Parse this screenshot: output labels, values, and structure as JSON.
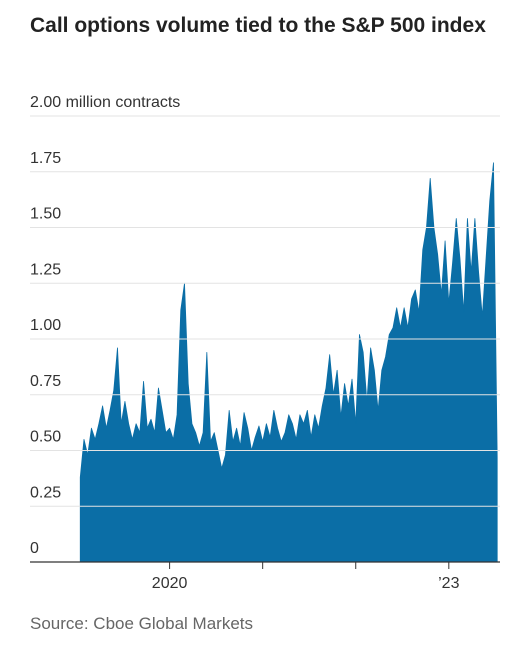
{
  "chart_data": {
    "type": "area",
    "title": "Call options volume tied to the S&P 500 index",
    "source": "Source: Cboe Global Markets",
    "color": "#0b6ea6",
    "grid": true,
    "xlim": [
      2018.5,
      2023.55
    ],
    "xticks": [
      2020,
      {
        "value": 2021,
        "label": null
      },
      {
        "value": 2022,
        "label": null
      },
      {
        "value": 2023,
        "label": "’23"
      }
    ],
    "ylim": [
      0,
      2
    ],
    "yticks": [
      0,
      0.25,
      {
        "value": 0.5,
        "label": "0.50"
      },
      0.75,
      {
        "value": 1,
        "label": "1.00"
      },
      1.25,
      {
        "value": 1.5,
        "label": "1.50"
      },
      1.75,
      {
        "value": 2,
        "label": "2.00 million contracts"
      }
    ],
    "x": [
      2019.04,
      2019.08,
      2019.12,
      2019.16,
      2019.2,
      2019.24,
      2019.28,
      2019.32,
      2019.36,
      2019.4,
      2019.44,
      2019.48,
      2019.52,
      2019.56,
      2019.6,
      2019.64,
      2019.68,
      2019.72,
      2019.76,
      2019.8,
      2019.84,
      2019.88,
      2019.92,
      2019.96,
      2020.0,
      2020.04,
      2020.08,
      2020.12,
      2020.16,
      2020.2,
      2020.24,
      2020.28,
      2020.32,
      2020.36,
      2020.4,
      2020.44,
      2020.48,
      2020.52,
      2020.56,
      2020.6,
      2020.64,
      2020.68,
      2020.72,
      2020.76,
      2020.8,
      2020.84,
      2020.88,
      2020.92,
      2020.96,
      2021.0,
      2021.04,
      2021.08,
      2021.12,
      2021.16,
      2021.2,
      2021.24,
      2021.28,
      2021.32,
      2021.36,
      2021.4,
      2021.44,
      2021.48,
      2021.52,
      2021.56,
      2021.6,
      2021.64,
      2021.68,
      2021.72,
      2021.76,
      2021.8,
      2021.84,
      2021.88,
      2021.92,
      2021.96,
      2022.0,
      2022.04,
      2022.08,
      2022.12,
      2022.16,
      2022.2,
      2022.24,
      2022.28,
      2022.32,
      2022.36,
      2022.4,
      2022.44,
      2022.48,
      2022.52,
      2022.56,
      2022.6,
      2022.64,
      2022.68,
      2022.72,
      2022.76,
      2022.8,
      2022.84,
      2022.88,
      2022.92,
      2022.96,
      2023.0,
      2023.04,
      2023.08,
      2023.12,
      2023.16,
      2023.2,
      2023.24,
      2023.28,
      2023.32,
      2023.36,
      2023.4,
      2023.44,
      2023.48,
      2023.52
    ],
    "values": [
      0.38,
      0.55,
      0.48,
      0.6,
      0.55,
      0.62,
      0.7,
      0.6,
      0.68,
      0.77,
      0.96,
      0.62,
      0.72,
      0.62,
      0.55,
      0.62,
      0.58,
      0.81,
      0.6,
      0.64,
      0.58,
      0.78,
      0.68,
      0.58,
      0.6,
      0.55,
      0.66,
      1.13,
      1.25,
      0.8,
      0.62,
      0.58,
      0.52,
      0.58,
      0.94,
      0.54,
      0.58,
      0.5,
      0.42,
      0.48,
      0.68,
      0.54,
      0.6,
      0.52,
      0.67,
      0.6,
      0.5,
      0.56,
      0.61,
      0.54,
      0.62,
      0.56,
      0.68,
      0.6,
      0.54,
      0.58,
      0.66,
      0.62,
      0.55,
      0.66,
      0.62,
      0.68,
      0.56,
      0.66,
      0.6,
      0.7,
      0.78,
      0.93,
      0.75,
      0.86,
      0.65,
      0.8,
      0.7,
      0.82,
      0.62,
      1.02,
      0.94,
      0.72,
      0.96,
      0.86,
      0.68,
      0.86,
      0.92,
      1.02,
      1.05,
      1.14,
      1.05,
      1.14,
      1.05,
      1.18,
      1.22,
      1.12,
      1.4,
      1.5,
      1.72,
      1.5,
      1.38,
      1.2,
      1.44,
      1.16,
      1.34,
      1.54,
      1.36,
      1.12,
      1.54,
      1.3,
      1.54,
      1.3,
      1.1,
      1.36,
      1.62,
      1.79,
      0.47
    ]
  }
}
